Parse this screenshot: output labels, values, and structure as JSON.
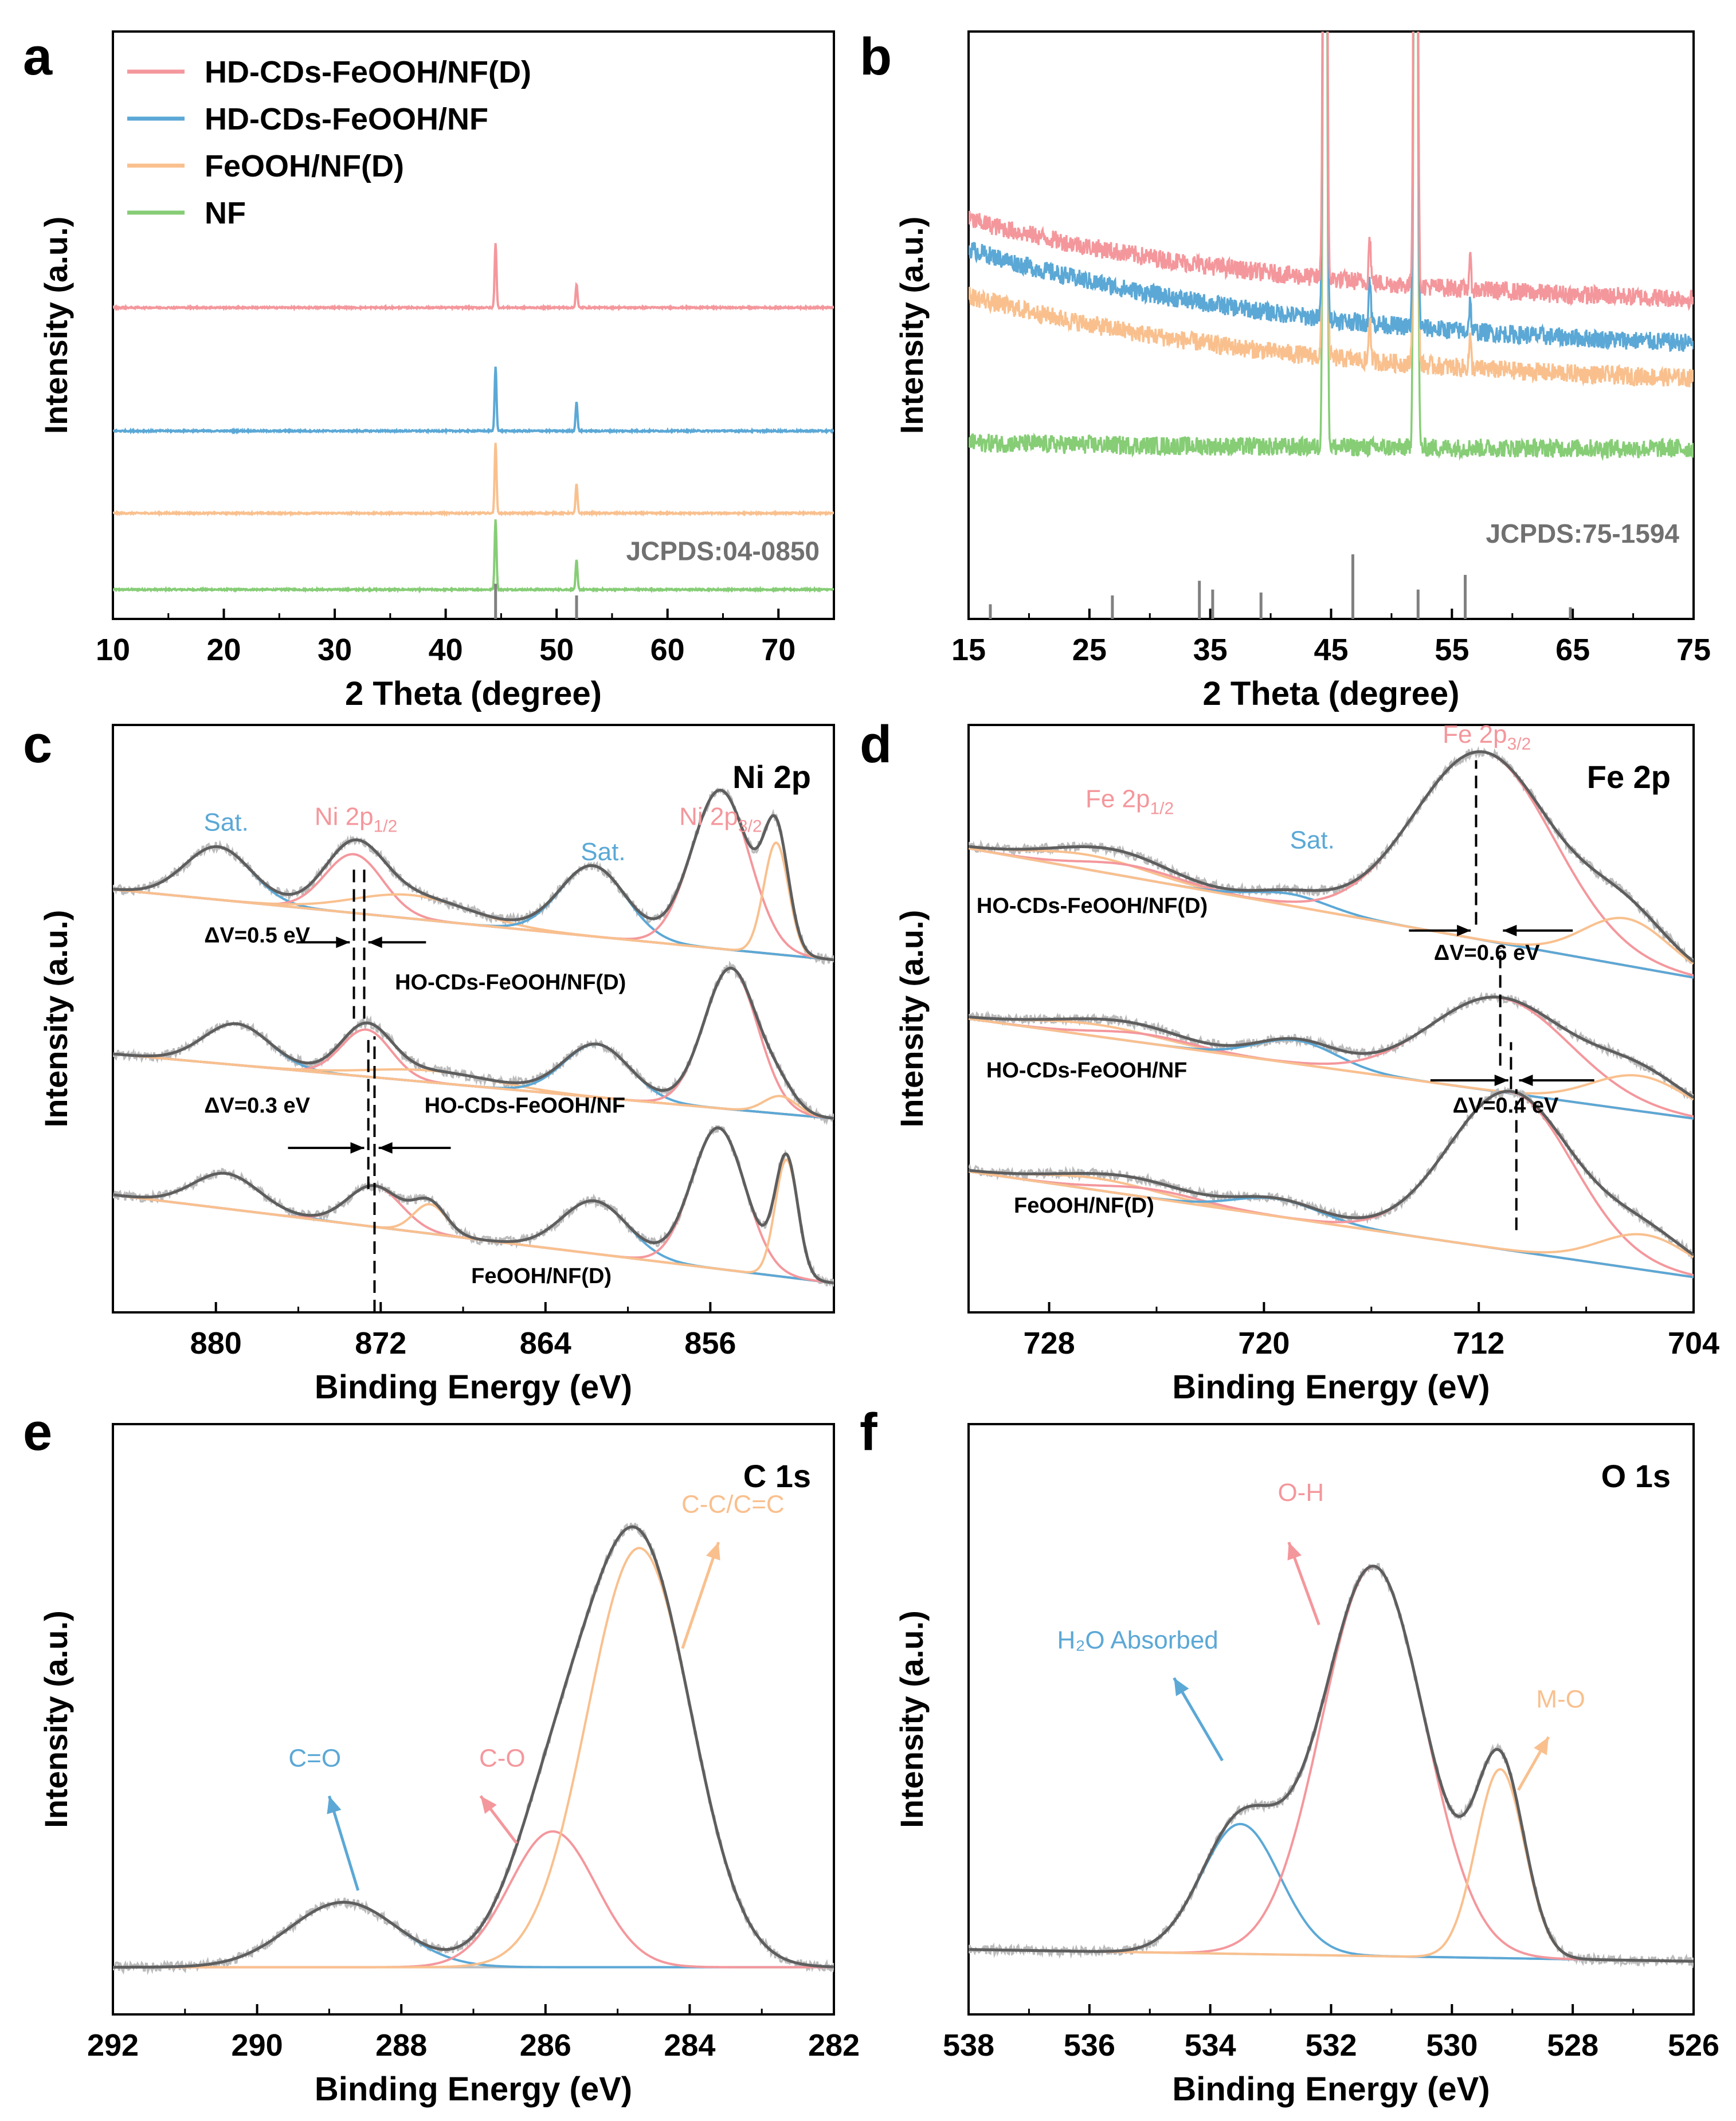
{
  "figure": {
    "panel_ids": [
      "a",
      "b",
      "c",
      "d",
      "e",
      "f"
    ]
  },
  "colors": {
    "pink": "#F4979C",
    "blue": "#5BA8D6",
    "orange": "#F9C08E",
    "green": "#86CD76",
    "dark": "#5E5E5E",
    "raw": "#BBBBBB",
    "baseline": "#BDBDBD",
    "axis": "#000000",
    "ref": "#808080"
  },
  "chart_data": [
    {
      "id": "a",
      "panel_label": "a",
      "type": "line",
      "title": "",
      "xlabel": "2 Theta (degree)",
      "ylabel": "Intensity (a.u.)",
      "xlim": [
        10,
        75
      ],
      "ylim": [
        0,
        100
      ],
      "x_reversed": false,
      "xticks": [
        10,
        20,
        30,
        40,
        50,
        60,
        70
      ],
      "legend": {
        "placement": "top-left",
        "entries": [
          "HD-CDs-FeOOH/NF(D)",
          "HD-CDs-FeOOH/NF",
          "FeOOH/NF(D)",
          "NF"
        ]
      },
      "reference_label": "JCPDS:04-0850",
      "reference_lines": [
        {
          "x": 44.5,
          "h": 6
        },
        {
          "x": 51.8,
          "h": 4
        }
      ],
      "series": [
        {
          "name": "HD-CDs-FeOOH/NF(D)",
          "color": "pink",
          "baseline": 53,
          "peaks": [
            [
              44.5,
              11
            ],
            [
              51.8,
              4
            ]
          ]
        },
        {
          "name": "HD-CDs-FeOOH/NF",
          "color": "blue",
          "baseline": 32,
          "peaks": [
            [
              44.5,
              11
            ],
            [
              51.8,
              5
            ]
          ]
        },
        {
          "name": "FeOOH/NF(D)",
          "color": "orange",
          "baseline": 18,
          "peaks": [
            [
              44.5,
              12
            ],
            [
              51.8,
              5
            ]
          ]
        },
        {
          "name": "NF",
          "color": "green",
          "baseline": 5,
          "peaks": [
            [
              44.5,
              12
            ],
            [
              51.8,
              5
            ]
          ]
        }
      ]
    },
    {
      "id": "b",
      "panel_label": "b",
      "type": "line",
      "title": "",
      "xlabel": "2 Theta (degree)",
      "ylabel": "Intensity (a.u.)",
      "xlim": [
        15,
        75
      ],
      "ylim": [
        0,
        100
      ],
      "x_reversed": false,
      "xticks": [
        15,
        25,
        35,
        45,
        55,
        65,
        75
      ],
      "reference_label": "JCPDS:75-1594",
      "reference_lines": [
        {
          "x": 16.8,
          "h": 2.5
        },
        {
          "x": 26.9,
          "h": 4
        },
        {
          "x": 34.1,
          "h": 6.5
        },
        {
          "x": 35.2,
          "h": 5
        },
        {
          "x": 39.2,
          "h": 4.5
        },
        {
          "x": 46.8,
          "h": 11
        },
        {
          "x": 52.2,
          "h": 5
        },
        {
          "x": 56.1,
          "h": 7.5
        },
        {
          "x": 64.8,
          "h": 2
        }
      ],
      "series": [
        {
          "name": "HD-CDs-FeOOH/NF(D)",
          "color": "pink",
          "baseline": [
            68,
            54.5
          ],
          "peaks": [
            [
              44.5,
              200
            ],
            [
              52,
              200
            ],
            [
              48.2,
              8
            ],
            [
              56.5,
              5
            ]
          ]
        },
        {
          "name": "HD-CDs-FeOOH/NF",
          "color": "blue",
          "baseline": [
            63,
            47
          ],
          "peaks": [
            [
              44.5,
              200
            ],
            [
              52,
              200
            ],
            [
              48.2,
              8
            ],
            [
              56.5,
              5
            ]
          ]
        },
        {
          "name": "FeOOH/NF(D)",
          "color": "orange",
          "baseline": [
            55,
            41
          ],
          "peaks": [
            [
              44.5,
              200
            ],
            [
              52,
              200
            ],
            [
              48.2,
              8
            ],
            [
              56.5,
              5
            ]
          ]
        },
        {
          "name": "NF",
          "color": "green",
          "baseline": [
            30,
            29
          ],
          "peaks": [
            [
              44.5,
              200
            ],
            [
              52,
              200
            ]
          ]
        }
      ]
    },
    {
      "id": "c",
      "panel_label": "c",
      "type": "line",
      "title": "Ni 2p",
      "xlabel": "Binding Energy (eV)",
      "ylabel": "Intensity (a.u.)",
      "xlim": [
        885,
        850
      ],
      "ylim": [
        0,
        100
      ],
      "x_reversed": true,
      "xticks": [
        880,
        872,
        864,
        856
      ],
      "peak_labels": [
        {
          "text": "Sat.",
          "x": 879.5,
          "y": 82,
          "color": "blue"
        },
        {
          "text": "Ni 2p",
          "sub": "1/2",
          "x": 873.2,
          "y": 83,
          "color": "pink"
        },
        {
          "text": "Sat.",
          "x": 861.2,
          "y": 77,
          "color": "blue"
        },
        {
          "text": "Ni 2p",
          "sub": "3/2",
          "x": 855.5,
          "y": 83,
          "color": "pink"
        }
      ],
      "annotations": [
        {
          "text": "ΔV=0.5 eV",
          "x": 878,
          "y": 63
        },
        {
          "text": "HO-CDs-FeOOH/NF(D)",
          "x": 865.7,
          "y": 55
        },
        {
          "text": "ΔV=0.3 eV",
          "x": 878,
          "y": 34
        },
        {
          "text": "HO-CDs-FeOOH/NF",
          "x": 865,
          "y": 34
        },
        {
          "text": "FeOOH/NF(D)",
          "x": 864.2,
          "y": 5
        }
      ],
      "dashed_lines": [
        [
          873.3,
          50,
          76
        ],
        [
          872.8,
          50,
          76
        ],
        [
          872.6,
          21,
          47
        ],
        [
          872.3,
          0,
          47
        ]
      ],
      "arrows": [
        [
          876.1,
          63,
          873.5
        ],
        [
          869.8,
          63,
          872.6
        ],
        [
          876.5,
          28,
          872.8
        ],
        [
          868.6,
          28,
          872.1
        ]
      ],
      "datasets": [
        {
          "name": "HO-CDs-FeOOH/NF(D)",
          "offset": 0,
          "bg": [
            72,
            60
          ],
          "components": [
            {
              "color": "blue",
              "center": 879.9,
              "height": 9,
              "width": 1.6
            },
            {
              "color": "pink",
              "center": 873.3,
              "height": 10,
              "width": 1.4
            },
            {
              "color": "orange",
              "center": 870.5,
              "height": 4,
              "width": 2.8
            },
            {
              "color": "blue",
              "center": 861.7,
              "height": 12,
              "width": 1.6
            },
            {
              "color": "pink",
              "center": 855.5,
              "height": 27,
              "width": 1.4
            },
            {
              "color": "orange",
              "center": 852.8,
              "height": 19,
              "width": 0.6
            }
          ]
        },
        {
          "name": "HO-CDs-FeOOH/NF",
          "offset": 0,
          "bg": [
            44,
            33
          ],
          "components": [
            {
              "color": "blue",
              "center": 879.0,
              "height": 7,
              "width": 1.6
            },
            {
              "color": "pink",
              "center": 872.7,
              "height": 8,
              "width": 1.2
            },
            {
              "color": "orange",
              "center": 869.5,
              "height": 2,
              "width": 3
            },
            {
              "color": "blue",
              "center": 861.5,
              "height": 9,
              "width": 1.6
            },
            {
              "color": "pink",
              "center": 855.0,
              "height": 24,
              "width": 1.3
            },
            {
              "color": "orange",
              "center": 852.6,
              "height": 3,
              "width": 0.8
            }
          ]
        },
        {
          "name": "FeOOH/NF(D)",
          "offset": 0,
          "bg": [
            20,
            5
          ],
          "components": [
            {
              "color": "blue",
              "center": 879.5,
              "height": 6,
              "width": 1.6
            },
            {
              "color": "pink",
              "center": 872.3,
              "height": 7,
              "width": 1.3
            },
            {
              "color": "orange",
              "center": 869.6,
              "height": 5,
              "width": 0.8
            },
            {
              "color": "blue",
              "center": 861.6,
              "height": 9,
              "width": 1.6
            },
            {
              "color": "pink",
              "center": 855.6,
              "height": 24,
              "width": 1.3
            },
            {
              "color": "orange",
              "center": 852.3,
              "height": 20,
              "width": 0.55
            }
          ]
        }
      ]
    },
    {
      "id": "d",
      "panel_label": "d",
      "type": "line",
      "title": "Fe 2p",
      "xlabel": "Binding Energy (eV)",
      "ylabel": "Intensity (a.u.)",
      "xlim": [
        731,
        704
      ],
      "ylim": [
        0,
        100
      ],
      "x_reversed": true,
      "xticks": [
        728,
        720,
        712,
        704
      ],
      "peak_labels": [
        {
          "text": "Fe 2p",
          "sub": "1/2",
          "x": 725,
          "y": 86,
          "color": "pink"
        },
        {
          "text": "Sat.",
          "x": 718.2,
          "y": 79,
          "color": "blue"
        },
        {
          "text": "Fe 2p",
          "sub": "3/2",
          "x": 711.7,
          "y": 97,
          "color": "pink"
        }
      ],
      "annotations": [
        {
          "text": "HO-CDs-FeOOH/NF(D)",
          "x": 726.4,
          "y": 68
        },
        {
          "text": "ΔV=0.6 eV",
          "x": 711.7,
          "y": 60
        },
        {
          "text": "HO-CDs-FeOOH/NF",
          "x": 726.6,
          "y": 40
        },
        {
          "text": "ΔV=0.4 eV",
          "x": 711,
          "y": 34
        },
        {
          "text": "FeOOH/NF(D)",
          "x": 726.7,
          "y": 17
        }
      ],
      "dashed_lines": [
        [
          712.1,
          66,
          94
        ],
        [
          711.2,
          42,
          62
        ],
        [
          710.8,
          38,
          46
        ],
        [
          710.6,
          14,
          38
        ]
      ],
      "arrows": [
        [
          714.6,
          65,
          712.3
        ],
        [
          708.5,
          65,
          711.1
        ],
        [
          713.8,
          39.5,
          710.9
        ],
        [
          707.7,
          39.5,
          710.5
        ]
      ],
      "datasets": [
        {
          "name": "HO-CDs-FeOOH/NF(D)",
          "offset": 0,
          "bg": [
            79,
            57
          ],
          "components": [
            {
              "color": "orange",
              "center": 726.5,
              "height": 2.5,
              "width": 2.2
            },
            {
              "color": "pink",
              "center": 725,
              "height": 2,
              "width": 1.8
            },
            {
              "color": "blue",
              "center": 719,
              "height": 2,
              "width": 1.4
            },
            {
              "color": "pink",
              "center": 711.8,
              "height": 32,
              "width": 2.6
            },
            {
              "color": "orange",
              "center": 706.5,
              "height": 8,
              "width": 1.6
            }
          ]
        },
        {
          "name": "HO-CDs-FeOOH/NF",
          "offset": 0,
          "bg": [
            50,
            33
          ],
          "components": [
            {
              "color": "orange",
              "center": 726.3,
              "height": 2,
              "width": 2.4
            },
            {
              "color": "pink",
              "center": 724.5,
              "height": 1.5,
              "width": 1.8
            },
            {
              "color": "blue",
              "center": 718.8,
              "height": 4,
              "width": 1.5
            },
            {
              "color": "pink",
              "center": 711.2,
              "height": 16,
              "width": 2.6
            },
            {
              "color": "orange",
              "center": 706,
              "height": 6,
              "width": 1.8
            }
          ]
        },
        {
          "name": "FeOOH/NF(D)",
          "offset": 0,
          "bg": [
            24,
            6
          ],
          "components": [
            {
              "color": "orange",
              "center": 726.2,
              "height": 2,
              "width": 2.2
            },
            {
              "color": "pink",
              "center": 724.2,
              "height": 1.5,
              "width": 1.8
            },
            {
              "color": "blue",
              "center": 719.5,
              "height": 3,
              "width": 1.6
            },
            {
              "color": "pink",
              "center": 710.8,
              "height": 27,
              "width": 2.3
            },
            {
              "color": "orange",
              "center": 705.8,
              "height": 6,
              "width": 1.7
            }
          ]
        }
      ]
    },
    {
      "id": "e",
      "panel_label": "e",
      "type": "line",
      "title": "C 1s",
      "xlabel": "Binding Energy (eV)",
      "ylabel": "Intensity (a.u.)",
      "xlim": [
        292,
        282
      ],
      "ylim": [
        0,
        100
      ],
      "x_reversed": true,
      "xticks": [
        292,
        290,
        288,
        286,
        284,
        282
      ],
      "datasets": [
        {
          "name": "C 1s",
          "offset": 0,
          "bg": [
            8,
            8
          ],
          "components": [
            {
              "color": "blue",
              "center": 288.8,
              "height": 11,
              "width": 0.75
            },
            {
              "color": "pink",
              "center": 285.9,
              "height": 23,
              "width": 0.6
            },
            {
              "color": "orange",
              "center": 284.7,
              "height": 71,
              "width": 0.72
            }
          ]
        }
      ],
      "labels": [
        {
          "text": "C=O",
          "x": 289.2,
          "y": 42,
          "color": "blue",
          "arrow": [
            289.0,
            37,
            288.6,
            21
          ]
        },
        {
          "text": "C-O",
          "x": 286.6,
          "y": 42,
          "color": "pink",
          "arrow": [
            286.9,
            37,
            286.4,
            29
          ]
        },
        {
          "text": "C-C/C=C",
          "x": 283.4,
          "y": 85,
          "color": "orange",
          "arrow": [
            283.6,
            80,
            284.1,
            62
          ]
        }
      ]
    },
    {
      "id": "f",
      "panel_label": "f",
      "type": "line",
      "title": "O 1s",
      "xlabel": "Binding Energy (eV)",
      "ylabel": "Intensity (a.u.)",
      "xlim": [
        538,
        526
      ],
      "ylim": [
        0,
        100
      ],
      "x_reversed": true,
      "xticks": [
        538,
        536,
        534,
        532,
        530,
        528,
        526
      ],
      "datasets": [
        {
          "name": "O 1s",
          "offset": 0,
          "bg": [
            11,
            9
          ],
          "components": [
            {
              "color": "blue",
              "center": 533.5,
              "height": 22,
              "width": 0.65
            },
            {
              "color": "pink",
              "center": 531.3,
              "height": 66,
              "width": 0.85
            },
            {
              "color": "orange",
              "center": 529.2,
              "height": 32,
              "width": 0.4
            }
          ]
        }
      ],
      "labels": [
        {
          "text": "O-H",
          "x": 532.5,
          "y": 87,
          "color": "pink",
          "arrow": [
            532.7,
            80,
            532.2,
            66
          ]
        },
        {
          "text": "H₂O Absorbed",
          "x": 535.2,
          "y": 62,
          "color": "blue",
          "arrow": [
            534.6,
            57,
            533.8,
            43
          ]
        },
        {
          "text": "M-O",
          "x": 528.2,
          "y": 52,
          "color": "orange",
          "arrow": [
            528.4,
            47,
            528.9,
            38
          ]
        }
      ]
    }
  ]
}
